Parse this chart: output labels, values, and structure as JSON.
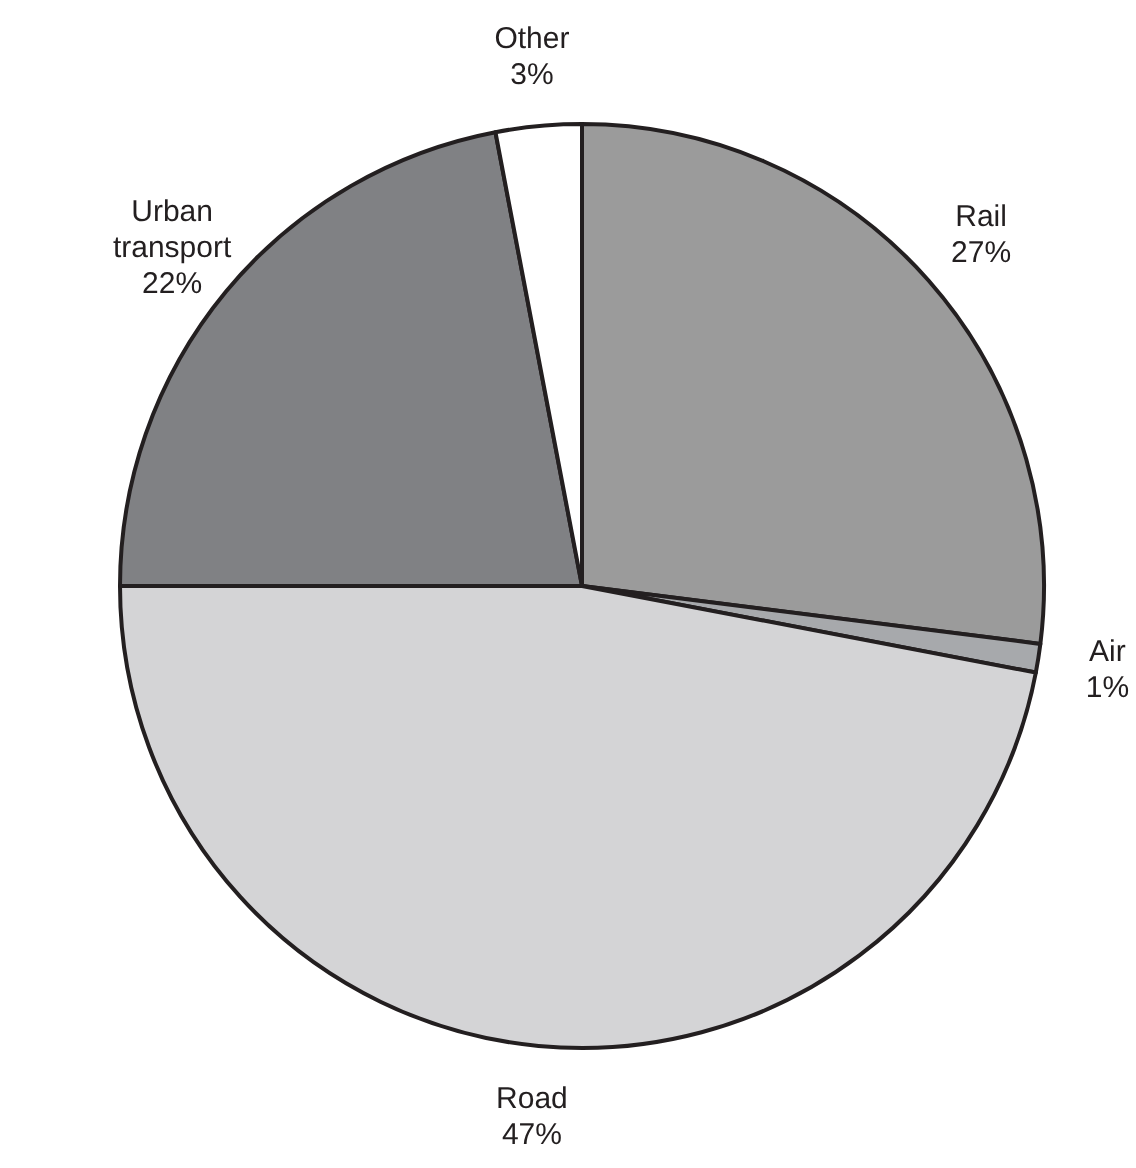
{
  "chart_data": {
    "type": "pie",
    "categories": [
      "Rail",
      "Air",
      "Road",
      "Urban transport",
      "Other"
    ],
    "values": [
      27,
      1,
      47,
      22,
      3
    ],
    "colors": [
      "#9b9b9b",
      "#a7a9ac",
      "#d4d4d6",
      "#808184",
      "#ffffff"
    ],
    "value_labels": [
      "27%",
      "1%",
      "47%",
      "22%",
      "3%"
    ]
  }
}
